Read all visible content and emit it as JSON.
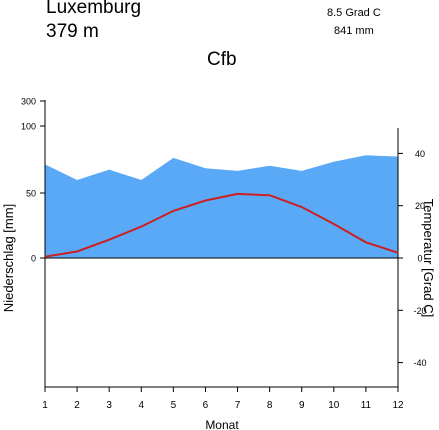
{
  "station": "Luxemburg",
  "elevation": "379  m",
  "mean_temp": "8.5 Grad C",
  "annual_precip": "841 mm",
  "climate_class": "Cfb",
  "colors": {
    "precip_fill": "#5aa9f7",
    "temp_line": "#cc1f1f",
    "axis": "#000000"
  },
  "chart_data": {
    "type": "area",
    "categories": [
      "1",
      "2",
      "3",
      "4",
      "5",
      "6",
      "7",
      "8",
      "9",
      "10",
      "11",
      "12"
    ],
    "xlabel": "Monat",
    "ylabel": "Niederschlag [mm]",
    "y2label": "Temperatur [Grad C]",
    "y_ticks": [
      "0",
      "50",
      "100",
      "300"
    ],
    "y2_ticks": [
      "40",
      "20",
      "0",
      "-20",
      "-40"
    ],
    "series": [
      {
        "axis": "left",
        "unit": "mm",
        "values": [
          72,
          60,
          68,
          60,
          77,
          69,
          67,
          71,
          67,
          74,
          79,
          78
        ]
      },
      {
        "axis": "right",
        "unit": "Grad C",
        "values": [
          0.5,
          2.5,
          7,
          12,
          18,
          22,
          24.5,
          24,
          19.5,
          13,
          6,
          2
        ]
      }
    ]
  }
}
